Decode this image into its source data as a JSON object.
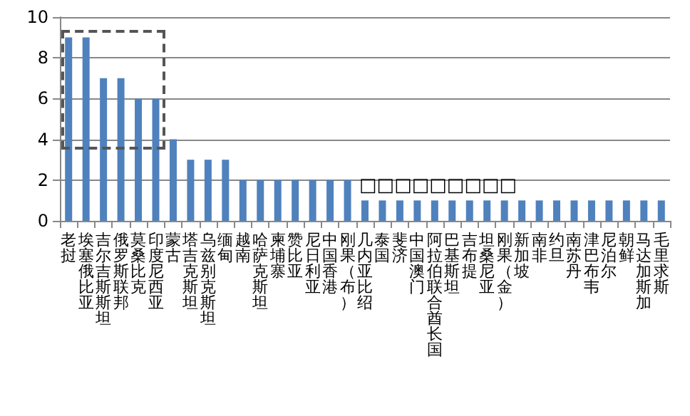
{
  "chart_data": {
    "type": "bar",
    "categories": [
      "老挝",
      "埃塞俄比亚",
      "吉尔吉斯斯坦",
      "俄罗斯联邦",
      "莫桑比克",
      "印度尼西亚",
      "蒙古",
      "塔吉克斯坦",
      "乌兹别克斯坦",
      "缅甸",
      "越南",
      "哈萨克斯坦",
      "柬埔寨",
      "赞比亚",
      "尼日利亚",
      "中国香港",
      "刚果（布）",
      "几内亚比绍",
      "泰国",
      "斐济",
      "中国澳门",
      "阿拉伯联合酋长国",
      "巴基斯坦",
      "吉布提",
      "坦桑尼亚",
      "刚果（金）",
      "新加坡",
      "南非",
      "约旦",
      "南苏丹",
      "津巴布韦",
      "尼泊尔",
      "朝鲜",
      "马达加斯加",
      "毛里求斯"
    ],
    "values": [
      9,
      9,
      7,
      7,
      6,
      6,
      4,
      3,
      3,
      3,
      2,
      2,
      2,
      2,
      2,
      2,
      2,
      1,
      1,
      1,
      1,
      1,
      1,
      1,
      1,
      1,
      1,
      1,
      1,
      1,
      1,
      1,
      1,
      1,
      1
    ],
    "color": "#4f81bd",
    "ylim": [
      0,
      10
    ],
    "yticks": [
      0,
      2,
      4,
      6,
      8,
      10
    ],
    "grid": "y",
    "annotations": [
      "□□□□□□□□□"
    ]
  }
}
